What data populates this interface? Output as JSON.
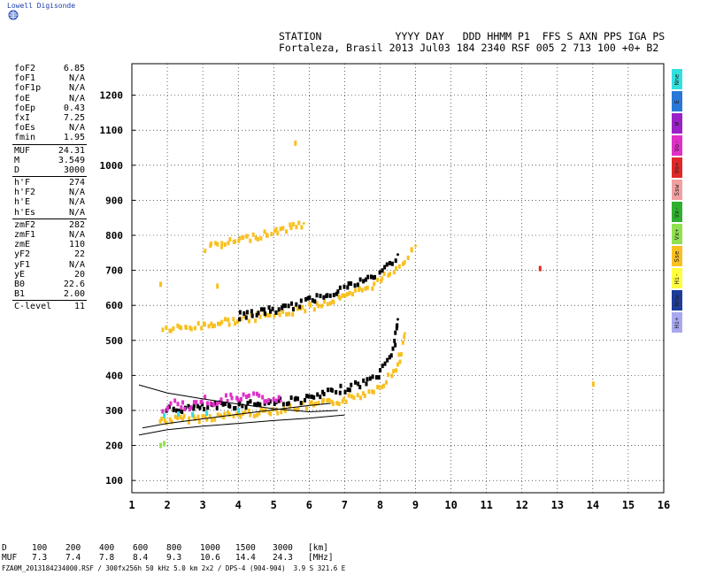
{
  "brand": "Lowell Digisonde",
  "header": {
    "line1": "STATION            YYYY DAY   DDD HHMM P1  FFS S AXN PPS IGA PS",
    "line2": "Fortaleza, Brasil 2013 Jul03 184 2340 RSF 005 2 713 100 +0+ B2"
  },
  "params": {
    "group1": [
      {
        "k": "foF2",
        "v": "6.85"
      },
      {
        "k": "foF1",
        "v": "N/A"
      },
      {
        "k": "foF1p",
        "v": "N/A"
      },
      {
        "k": "foE",
        "v": "N/A"
      },
      {
        "k": "foEp",
        "v": "0.43"
      },
      {
        "k": "fxI",
        "v": "7.25"
      },
      {
        "k": "foEs",
        "v": "N/A"
      },
      {
        "k": "fmin",
        "v": "1.95"
      }
    ],
    "group2": [
      {
        "k": "MUF",
        "v": "24.31"
      },
      {
        "k": "M",
        "v": "3.549"
      },
      {
        "k": "D",
        "v": "3000"
      }
    ],
    "group3": [
      {
        "k": "h'F",
        "v": "274"
      },
      {
        "k": "h'F2",
        "v": "N/A"
      },
      {
        "k": "h'E",
        "v": "N/A"
      },
      {
        "k": "h'Es",
        "v": "N/A"
      }
    ],
    "group4": [
      {
        "k": "zmF2",
        "v": "282"
      },
      {
        "k": "zmF1",
        "v": "N/A"
      },
      {
        "k": "zmE",
        "v": "110"
      },
      {
        "k": "yF2",
        "v": "22"
      },
      {
        "k": "yF1",
        "v": "N/A"
      },
      {
        "k": "yE",
        "v": "20"
      },
      {
        "k": "B0",
        "v": "22.6"
      },
      {
        "k": "B1",
        "v": "2.00"
      }
    ],
    "group5": [
      {
        "k": "C-level",
        "v": "11"
      }
    ]
  },
  "legend": [
    {
      "label": "Nne",
      "color": "#33e0e0"
    },
    {
      "label": "E",
      "color": "#2878d8"
    },
    {
      "label": "W",
      "color": "#9a20c8"
    },
    {
      "label": "Vo-",
      "color": "#e030c8"
    },
    {
      "label": "Vo+",
      "color": "#e02828"
    },
    {
      "label": "Ssw",
      "color": "#f0a0a0"
    },
    {
      "label": "Vx-",
      "color": "#30b030"
    },
    {
      "label": "Vx+",
      "color": "#90e050"
    },
    {
      "label": "Sse",
      "color": "#f8c020"
    },
    {
      "label": "Hi-",
      "color": "#ffff40"
    },
    {
      "label": "Nnw",
      "color": "#1c3c98"
    },
    {
      "label": "Hi+",
      "color": "#a8a8f0"
    }
  ],
  "chart_data": {
    "type": "scatter",
    "xlim": [
      1,
      16
    ],
    "ylim": [
      65,
      1290
    ],
    "x_ticks": [
      1,
      2,
      3,
      4,
      5,
      6,
      7,
      8,
      9,
      10,
      11,
      12,
      13,
      14,
      15,
      16
    ],
    "y_ticks": [
      100,
      200,
      300,
      400,
      500,
      600,
      700,
      800,
      900,
      1000,
      1100,
      1200
    ],
    "grid": true,
    "profile_lines": [
      {
        "name": "upper",
        "points": [
          [
            1.2,
            373
          ],
          [
            2,
            350
          ],
          [
            3,
            333
          ],
          [
            4,
            318
          ],
          [
            5,
            305
          ],
          [
            6,
            296
          ],
          [
            6.8,
            300
          ]
        ]
      },
      {
        "name": "middle",
        "points": [
          [
            1.3,
            250
          ],
          [
            2,
            263
          ],
          [
            3,
            276
          ],
          [
            4,
            289
          ],
          [
            5,
            302
          ],
          [
            6,
            314
          ],
          [
            6.6,
            320
          ]
        ]
      },
      {
        "name": "lower",
        "points": [
          [
            1.2,
            230
          ],
          [
            2,
            245
          ],
          [
            3,
            255
          ],
          [
            4,
            263
          ],
          [
            5,
            271
          ],
          [
            6,
            278
          ],
          [
            7,
            287
          ]
        ]
      }
    ],
    "traces": [
      {
        "name": "F-trace",
        "color": "#f8c020",
        "points": [
          [
            1.8,
            270
          ],
          [
            2,
            272
          ],
          [
            2.5,
            275
          ],
          [
            3,
            278
          ],
          [
            3.5,
            283
          ],
          [
            4,
            288
          ],
          [
            4.5,
            294
          ],
          [
            5,
            300
          ],
          [
            5.5,
            307
          ],
          [
            6,
            313
          ],
          [
            6.5,
            320
          ],
          [
            7,
            330
          ],
          [
            7.3,
            338
          ],
          [
            7.6,
            350
          ],
          [
            7.9,
            365
          ],
          [
            8.1,
            380
          ],
          [
            8.3,
            400
          ],
          [
            8.5,
            430
          ],
          [
            8.6,
            470
          ],
          [
            8.7,
            520
          ]
        ]
      },
      {
        "name": "F-trace-x",
        "color": "#000000",
        "points": [
          [
            2,
            300
          ],
          [
            2.5,
            305
          ],
          [
            3,
            308
          ],
          [
            3.5,
            312
          ],
          [
            4,
            316
          ],
          [
            4.5,
            320
          ],
          [
            5,
            324
          ],
          [
            5.5,
            328
          ],
          [
            6,
            333
          ],
          [
            7.6,
            380
          ],
          [
            7.9,
            395
          ],
          [
            8.1,
            420
          ],
          [
            8.3,
            450
          ],
          [
            8.4,
            490
          ],
          [
            8.45,
            530
          ],
          [
            8.5,
            560
          ]
        ]
      },
      {
        "name": "2F-trace",
        "color": "#f8c020",
        "points": [
          [
            1.9,
            530
          ],
          [
            2.5,
            535
          ],
          [
            3,
            542
          ],
          [
            3.5,
            550
          ],
          [
            4,
            558
          ],
          [
            4.5,
            566
          ],
          [
            5,
            574
          ],
          [
            5.5,
            582
          ],
          [
            5.9,
            592
          ],
          [
            7.1,
            625
          ],
          [
            7.6,
            648
          ],
          [
            8,
            670
          ],
          [
            8.3,
            695
          ],
          [
            8.7,
            730
          ],
          [
            9,
            770
          ]
        ]
      },
      {
        "name": "2F-trace-x",
        "color": "#000000",
        "points": [
          [
            4,
            570
          ],
          [
            4.5,
            578
          ],
          [
            5,
            586
          ],
          [
            5.5,
            595
          ],
          [
            7.8,
            680
          ],
          [
            8.2,
            710
          ],
          [
            8.5,
            745
          ]
        ]
      },
      {
        "name": "3F-trace",
        "color": "#f8c020",
        "points": [
          [
            3.1,
            762
          ],
          [
            3.5,
            772
          ],
          [
            4,
            785
          ],
          [
            4.5,
            797
          ],
          [
            5,
            810
          ],
          [
            5.5,
            822
          ],
          [
            5.85,
            834
          ]
        ]
      },
      {
        "name": "scatter-F",
        "color": "#e030c8",
        "points": [
          [
            1.9,
            300
          ],
          [
            2.2,
            320
          ],
          [
            2.6,
            310
          ],
          [
            3,
            330
          ],
          [
            3.3,
            325
          ],
          [
            3.7,
            335
          ],
          [
            4.1,
            340
          ],
          [
            4.5,
            338
          ],
          [
            4.8,
            332
          ],
          [
            5.2,
            327
          ]
        ]
      },
      {
        "name": "scatter-F-cyan",
        "color": "#33e0e0",
        "points": [
          [
            1.9,
            285
          ],
          [
            2.3,
            290
          ],
          [
            2.7,
            288
          ],
          [
            3.1,
            292
          ],
          [
            4,
            300
          ]
        ]
      },
      {
        "name": "low-echo",
        "color": "#90e050",
        "points": [
          [
            1.8,
            200
          ],
          [
            1.9,
            205
          ]
        ]
      },
      {
        "name": "isolated",
        "color": "#f8c020",
        "points": [
          [
            1.8,
            660
          ],
          [
            3.4,
            655
          ],
          [
            5.6,
            1063
          ],
          [
            14,
            375
          ]
        ]
      },
      {
        "name": "isolated-red",
        "color": "#e02828",
        "points": [
          [
            12.5,
            705
          ]
        ]
      }
    ]
  },
  "muf_table": {
    "d_label": "D",
    "muf_label": "MUF",
    "d_values": [
      "100",
      "200",
      "400",
      "600",
      "800",
      "1000",
      "1500",
      "3000"
    ],
    "muf_values": [
      "7.3",
      "7.4",
      "7.8",
      "8.4",
      "9.3",
      "10.6",
      "14.4",
      "24.3"
    ],
    "d_unit": "[km]",
    "muf_unit": "[MHz]"
  },
  "footer": "FZA0M_2013184234000.RSF / 300fx256h 50 kHz 5.0 km 2x2 / DPS-4 (904-904)  3.9 S 321.6 E"
}
